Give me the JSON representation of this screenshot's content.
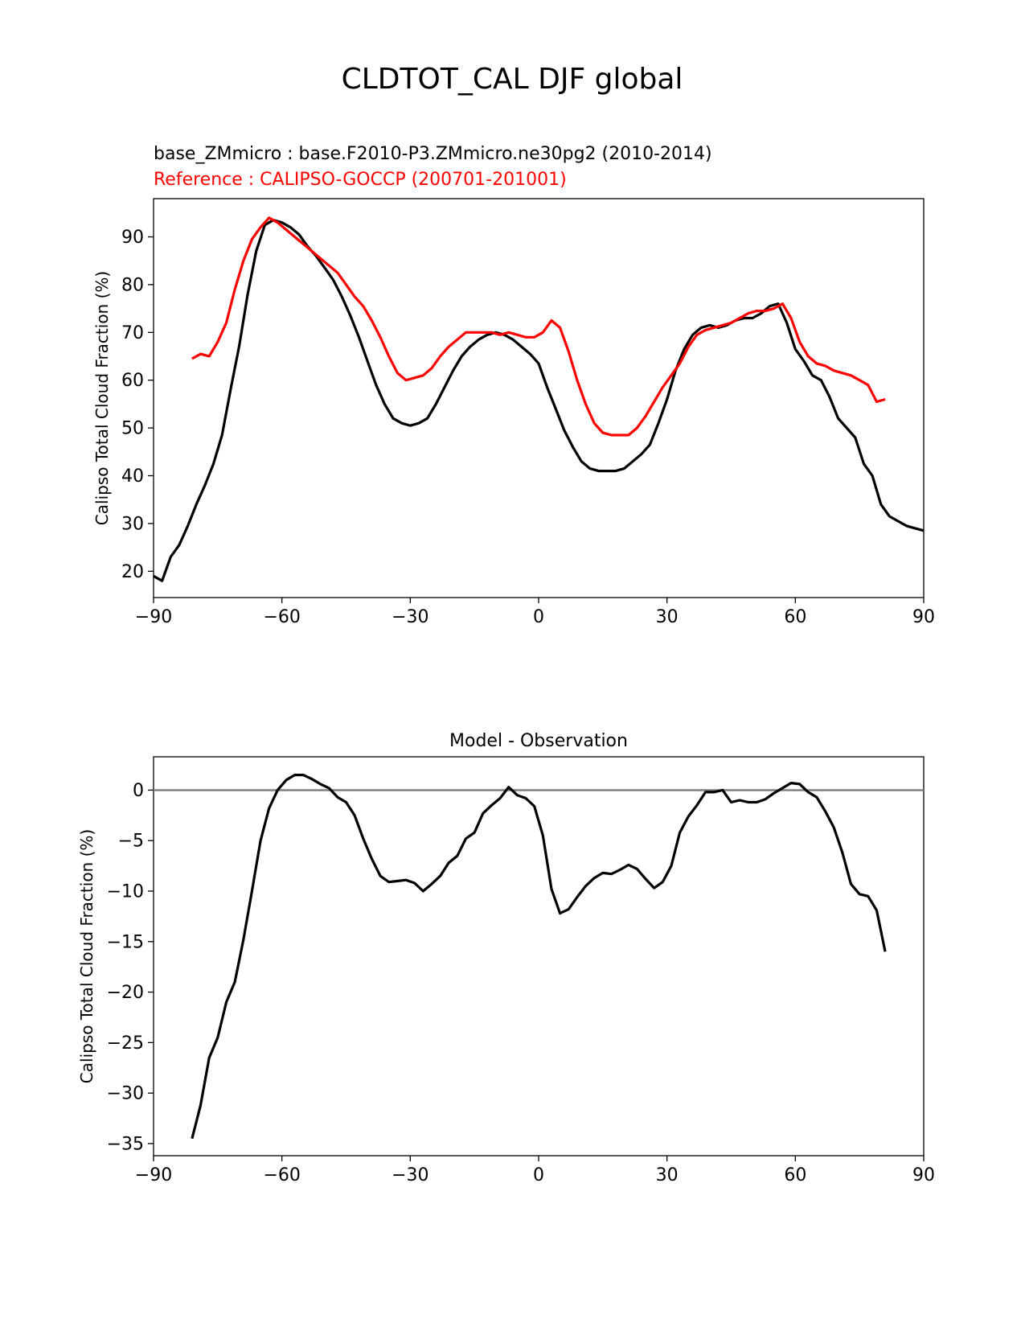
{
  "figure": {
    "suptitle": "CLDTOT_CAL DJF global",
    "test_label": "base_ZMmicro : base.F2010-P3.ZMmicro.ne30pg2 (2010-2014)",
    "reference_label": "Reference : CALIPSO-GOCCP (200701-201001)",
    "colors": {
      "test": "#000000",
      "reference": "#ff0000",
      "zero_line": "#808080"
    }
  },
  "chart_data": [
    {
      "type": "line",
      "title": "",
      "xlabel": "",
      "ylabel": "Calipso Total Cloud Fraction (%)",
      "xlim": [
        -90,
        90
      ],
      "ylim": [
        14.5,
        98
      ],
      "xticks": [
        -90,
        -60,
        -30,
        0,
        30,
        60,
        90
      ],
      "yticks": [
        20,
        30,
        40,
        50,
        60,
        70,
        80,
        90
      ],
      "grid": false,
      "series": [
        {
          "name": "base_ZMmicro",
          "color": "#000000",
          "x": [
            -90,
            -88,
            -86,
            -84,
            -82,
            -80,
            -78,
            -76,
            -74,
            -72,
            -70,
            -68,
            -66,
            -64,
            -62,
            -60,
            -58,
            -56,
            -54,
            -52,
            -50,
            -48,
            -46,
            -44,
            -42,
            -40,
            -38,
            -36,
            -34,
            -32,
            -30,
            -28,
            -26,
            -24,
            -22,
            -20,
            -18,
            -16,
            -14,
            -12,
            -10,
            -8,
            -6,
            -4,
            -2,
            0,
            2,
            4,
            6,
            8,
            10,
            12,
            14,
            16,
            18,
            20,
            22,
            24,
            26,
            28,
            30,
            32,
            34,
            36,
            38,
            40,
            42,
            44,
            46,
            48,
            50,
            52,
            54,
            56,
            58,
            60,
            62,
            64,
            66,
            68,
            70,
            72,
            74,
            76,
            78,
            80,
            82,
            84,
            86,
            88,
            90
          ],
          "y": [
            19,
            18,
            23,
            25.5,
            29.5,
            34,
            38,
            42.5,
            48.5,
            58,
            67,
            78,
            87,
            92.5,
            93.5,
            93,
            92,
            90.5,
            88,
            86,
            83.5,
            81,
            77.5,
            73.5,
            69,
            64,
            59,
            55,
            52,
            51,
            50.5,
            51,
            52,
            55,
            58.5,
            62,
            65,
            67,
            68.5,
            69.5,
            70,
            69.5,
            68.5,
            67,
            65.5,
            63.5,
            58.5,
            54,
            49.5,
            46,
            43,
            41.5,
            41,
            41,
            41,
            41.5,
            43,
            44.5,
            46.5,
            51,
            56,
            62,
            66.5,
            69.5,
            71,
            71.5,
            71,
            71.5,
            72.5,
            73,
            73,
            74,
            75.5,
            76,
            72,
            66.5,
            64,
            61,
            60,
            56.5,
            52,
            50,
            48,
            42.5,
            40,
            34,
            31.5,
            30.5,
            29.5,
            29,
            28.5
          ]
        },
        {
          "name": "Reference",
          "color": "#ff0000",
          "x": [
            -81,
            -79,
            -77,
            -75,
            -73,
            -71,
            -69,
            -67,
            -65,
            -63,
            -61,
            -59,
            -57,
            -55,
            -53,
            -51,
            -49,
            -47,
            -45,
            -43,
            -41,
            -39,
            -37,
            -35,
            -33,
            -31,
            -29,
            -27,
            -25,
            -23,
            -21,
            -19,
            -17,
            -15,
            -13,
            -11,
            -9,
            -7,
            -5,
            -3,
            -1,
            1,
            3,
            5,
            7,
            9,
            11,
            13,
            15,
            17,
            19,
            21,
            23,
            25,
            27,
            29,
            31,
            33,
            35,
            37,
            39,
            41,
            43,
            45,
            47,
            49,
            51,
            53,
            55,
            57,
            59,
            61,
            63,
            65,
            67,
            69,
            71,
            73,
            75,
            77,
            79,
            81
          ],
          "y": [
            64.5,
            65.5,
            65,
            68,
            72,
            79,
            85,
            89.5,
            92,
            94,
            93,
            91.5,
            90,
            88.5,
            87,
            85.5,
            84,
            82.5,
            80,
            77.5,
            75.5,
            72.5,
            69,
            65,
            61.5,
            60,
            60.5,
            61,
            62.5,
            65,
            67,
            68.5,
            70,
            70,
            70,
            70,
            69.5,
            70,
            69.5,
            69,
            69,
            70,
            72.5,
            71,
            66,
            60,
            55,
            51,
            49,
            48.5,
            48.5,
            48.5,
            50,
            52.5,
            55.5,
            58.5,
            61,
            63.5,
            67,
            69.5,
            70.5,
            71,
            71.5,
            72,
            73,
            74,
            74.5,
            74.5,
            75,
            76,
            73,
            68,
            65,
            63.5,
            63,
            62,
            61.5,
            61,
            60,
            59,
            55.5,
            56
          ]
        }
      ]
    },
    {
      "type": "line",
      "title": "Model - Observation",
      "xlabel": "",
      "ylabel": "Calipso Total Cloud Fraction (%)",
      "xlim": [
        -90,
        90
      ],
      "ylim": [
        -36.2,
        3.3
      ],
      "xticks": [
        -90,
        -60,
        -30,
        0,
        30,
        60,
        90
      ],
      "yticks": [
        0,
        -5,
        -10,
        -15,
        -20,
        -25,
        -30,
        -35
      ],
      "grid": false,
      "reference_line": 0,
      "series": [
        {
          "name": "",
          "color": "#000000",
          "x": [
            -81,
            -79,
            -77,
            -75,
            -73,
            -71,
            -69,
            -67,
            -65,
            -63,
            -61,
            -59,
            -57,
            -55,
            -53,
            -51,
            -49,
            -47,
            -45,
            -43,
            -41,
            -39,
            -37,
            -35,
            -33,
            -31,
            -29,
            -27,
            -25,
            -23,
            -21,
            -19,
            -17,
            -15,
            -13,
            -11,
            -9,
            -7,
            -5,
            -3,
            -1,
            1,
            3,
            5,
            7,
            9,
            11,
            13,
            15,
            17,
            19,
            21,
            23,
            25,
            27,
            29,
            31,
            33,
            35,
            37,
            39,
            41,
            43,
            45,
            47,
            49,
            51,
            53,
            55,
            57,
            59,
            61,
            63,
            65,
            67,
            69,
            71,
            73,
            75,
            77,
            79,
            81
          ],
          "y": [
            -34.5,
            -31.2,
            -26.5,
            -24.5,
            -21,
            -19,
            -14.8,
            -10,
            -5,
            -1.8,
            0,
            1,
            1.5,
            1.5,
            1.1,
            0.6,
            0.2,
            -0.7,
            -1.2,
            -2.5,
            -4.8,
            -6.8,
            -8.5,
            -9.1,
            -9,
            -8.9,
            -9.2,
            -10,
            -9.3,
            -8.5,
            -7.2,
            -6.5,
            -4.8,
            -4.2,
            -2.3,
            -1.5,
            -0.8,
            0.3,
            -0.5,
            -0.8,
            -1.6,
            -4.5,
            -9.8,
            -12.2,
            -11.8,
            -10.6,
            -9.5,
            -8.7,
            -8.2,
            -8.3,
            -7.9,
            -7.4,
            -7.8,
            -8.8,
            -9.7,
            -9.1,
            -7.5,
            -4.2,
            -2.6,
            -1.5,
            -0.2,
            -0.2,
            0,
            -1.2,
            -1,
            -1.2,
            -1.2,
            -0.9,
            -0.3,
            0.2,
            0.7,
            0.6,
            -0.2,
            -0.7,
            -2.1,
            -3.7,
            -6.2,
            -9.3,
            -10.3,
            -10.5,
            -11.9,
            -16
          ]
        }
      ]
    }
  ]
}
